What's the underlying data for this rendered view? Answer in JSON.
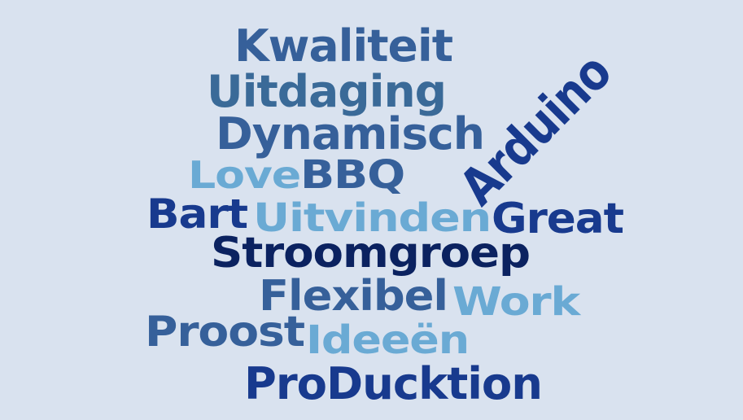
{
  "background_color": "#d9e2ef",
  "palette": {
    "deep_navy": "#0b2260",
    "royal_blue": "#183a8e",
    "steel_blue": "#36609a",
    "mid_blue": "#3a6a98",
    "light_blue": "#6aaad4"
  },
  "words": [
    {
      "id": "kwaliteit",
      "text": "Kwaliteit",
      "color": "#36609a"
    },
    {
      "id": "uitdaging",
      "text": "Uitdaging",
      "color": "#3a6a98"
    },
    {
      "id": "dynamisch",
      "text": "Dynamisch",
      "color": "#36609a"
    },
    {
      "id": "arduino",
      "text": "Arduino",
      "color": "#183a8e"
    },
    {
      "id": "love",
      "text": "Love",
      "color": "#6aaad4"
    },
    {
      "id": "bbq",
      "text": "BBQ",
      "color": "#36609a"
    },
    {
      "id": "bart",
      "text": "Bart",
      "color": "#183a8e"
    },
    {
      "id": "uitvinden",
      "text": "Uitvinden",
      "color": "#6aaad4"
    },
    {
      "id": "great",
      "text": "Great",
      "color": "#183a8e"
    },
    {
      "id": "stroomgroep",
      "text": "Stroomgroep",
      "color": "#0b2260"
    },
    {
      "id": "flexibel",
      "text": "Flexibel",
      "color": "#36609a"
    },
    {
      "id": "work",
      "text": "Work",
      "color": "#6aaad4"
    },
    {
      "id": "proost",
      "text": "Proost",
      "color": "#36609a"
    },
    {
      "id": "ideeen",
      "text": "Ideeën",
      "color": "#6aaad4"
    },
    {
      "id": "produktion",
      "text": "ProDucktion",
      "color": "#183a8e"
    }
  ]
}
